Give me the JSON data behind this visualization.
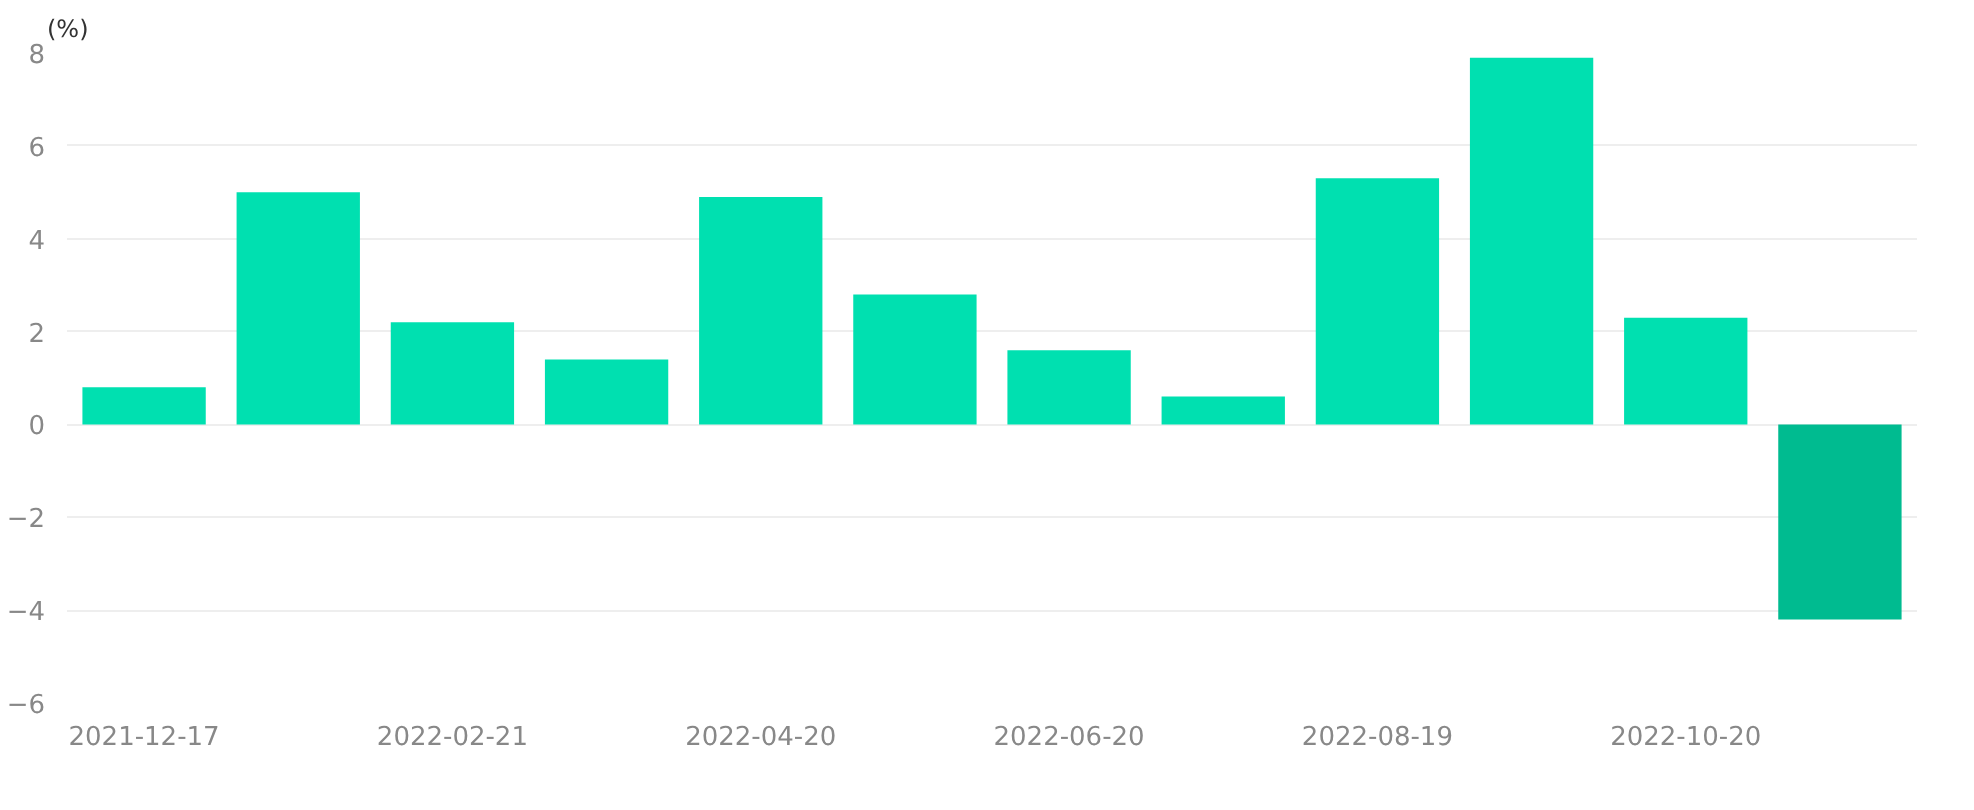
{
  "chart_data": {
    "type": "bar",
    "ylabel": "(%)",
    "categories": [
      "2021-12-17",
      null,
      "2022-02-21",
      null,
      "2022-04-20",
      null,
      "2022-06-20",
      null,
      "2022-08-19",
      null,
      "2022-10-20",
      null
    ],
    "values": [
      0.8,
      5.0,
      2.2,
      1.4,
      4.9,
      2.8,
      1.6,
      0.6,
      5.3,
      7.9,
      2.3,
      -4.2
    ],
    "colors": [
      "#00e0b0",
      "#00e0b0",
      "#00e0b0",
      "#00e0b0",
      "#00e0b0",
      "#00e0b0",
      "#00e0b0",
      "#00e0b0",
      "#00e0b0",
      "#00e0b0",
      "#00e0b0",
      "#00bb90"
    ],
    "ylim": [
      -6,
      8
    ],
    "yticks": [
      -6,
      -4,
      -2,
      0,
      2,
      4,
      6,
      8
    ],
    "grid": "y"
  }
}
